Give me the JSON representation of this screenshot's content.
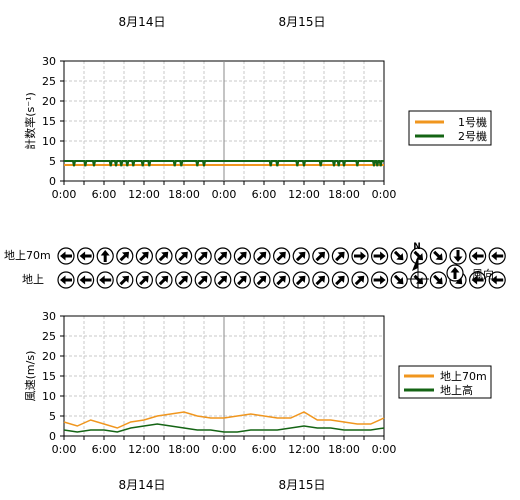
{
  "header": {
    "day1": "8月14日",
    "day2": "8月15日"
  },
  "footer": {
    "day1": "8月14日",
    "day2": "8月15日"
  },
  "x_tick_labels": [
    "0:00",
    "6:00",
    "12:00",
    "18:00",
    "0:00",
    "6:00",
    "12:00",
    "18:00",
    "0:00"
  ],
  "colors": {
    "orange": "#f0961e",
    "green": "#146414",
    "grid": "#c8c8c8"
  },
  "chart_data": [
    {
      "type": "line",
      "ylabel": "計数率(s⁻¹)",
      "ylim": [
        0,
        30
      ],
      "yticks": [
        0,
        5,
        10,
        15,
        20,
        25,
        30
      ],
      "grid": true,
      "legend_position": "right",
      "series": [
        {
          "name": "1号機",
          "color": "#f0961e",
          "description_value": 4.0
        },
        {
          "name": "2号機",
          "color": "#146414",
          "description_value": 5.0
        }
      ],
      "dip_hours": [
        1.5,
        3.2,
        4.5,
        7.0,
        7.8,
        8.6,
        9.5,
        10.4,
        11.8,
        12.8,
        16.6,
        17.6,
        20.0,
        21.0,
        31.0,
        32.0,
        35.0,
        36.0,
        38.5,
        40.5,
        41.2,
        42.0,
        44.0,
        46.5,
        47.0,
        47.5
      ],
      "dip_value": 3.7
    },
    {
      "type": "line",
      "ylabel": "風速(m/s)",
      "ylim": [
        0,
        30
      ],
      "yticks": [
        0,
        5,
        10,
        15,
        20,
        25,
        30
      ],
      "grid": true,
      "legend_position": "right",
      "series": [
        {
          "name": "地上70m",
          "color": "#f0961e",
          "x_hours": [
            0,
            2,
            4,
            6,
            8,
            10,
            12,
            14,
            16,
            18,
            20,
            22,
            24,
            26,
            28,
            30,
            32,
            34,
            36,
            38,
            40,
            42,
            44,
            46,
            48
          ],
          "values": [
            3.5,
            2.5,
            4,
            3,
            2,
            3.5,
            4,
            5,
            5.5,
            6,
            5,
            4.5,
            4.5,
            5,
            5.5,
            5,
            4.5,
            4.5,
            6,
            4,
            4,
            3.5,
            3,
            3,
            4.5
          ]
        },
        {
          "name": "地上高",
          "color": "#146414",
          "x_hours": [
            0,
            2,
            4,
            6,
            8,
            10,
            12,
            14,
            16,
            18,
            20,
            22,
            24,
            26,
            28,
            30,
            32,
            34,
            36,
            38,
            40,
            42,
            44,
            46,
            48
          ],
          "values": [
            1.5,
            1,
            1.5,
            1.5,
            1,
            2,
            2.5,
            3,
            2.5,
            2,
            1.5,
            1.5,
            1,
            1,
            1.5,
            1.5,
            1.5,
            2,
            2.5,
            2,
            2,
            1.5,
            1.5,
            1.5,
            2
          ]
        }
      ]
    }
  ],
  "wind": {
    "row_labels": [
      "地上70m",
      "地上"
    ],
    "legend_label": "風向",
    "north_label": "N",
    "rows": [
      [
        270,
        270,
        0,
        45,
        45,
        45,
        45,
        45,
        45,
        45,
        45,
        45,
        45,
        45,
        45,
        90,
        90,
        135,
        135,
        135,
        180,
        270,
        270
      ],
      [
        270,
        270,
        270,
        45,
        45,
        45,
        45,
        45,
        45,
        45,
        45,
        45,
        45,
        45,
        45,
        45,
        90,
        135,
        135,
        135,
        135,
        270,
        270
      ]
    ]
  }
}
